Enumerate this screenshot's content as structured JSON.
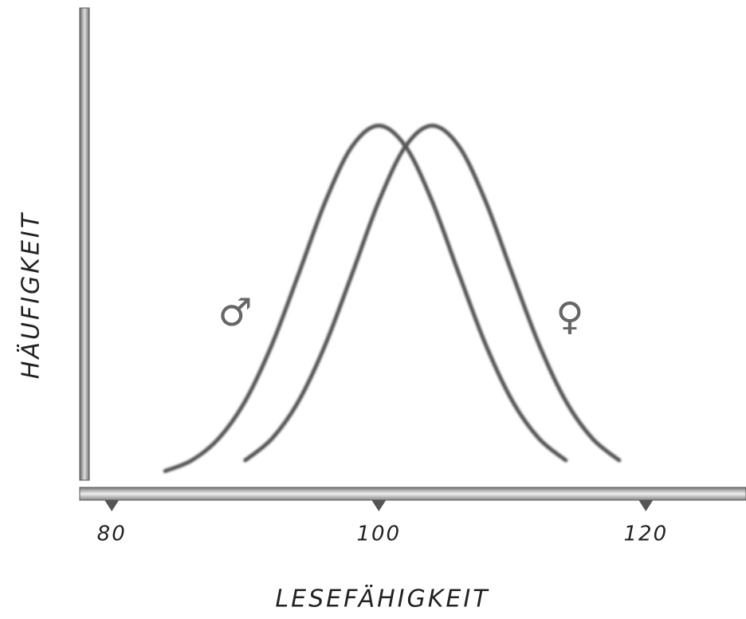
{
  "chart_data": {
    "type": "line",
    "x_label": "LESEFÄHIGKEIT",
    "y_label": "HÄUFIGKEIT",
    "xlim": [
      77.6,
      127.5
    ],
    "xticks": [
      80,
      100,
      120
    ],
    "ylim": [
      0,
      1
    ],
    "series": [
      {
        "name": "♂",
        "color": "#555555",
        "x": [
          84,
          86,
          88,
          90,
          92,
          94,
          96,
          98,
          100,
          102,
          104,
          106,
          108,
          110,
          112,
          114
        ],
        "values": [
          0.016,
          0.039,
          0.085,
          0.165,
          0.285,
          0.435,
          0.589,
          0.706,
          0.75,
          0.706,
          0.589,
          0.435,
          0.285,
          0.165,
          0.085,
          0.039
        ]
      },
      {
        "name": "♀",
        "color": "#555555",
        "x": [
          90,
          92,
          94,
          96,
          98,
          100,
          102,
          104,
          106,
          108,
          110,
          112,
          114,
          116,
          118
        ],
        "values": [
          0.039,
          0.085,
          0.165,
          0.285,
          0.435,
          0.589,
          0.706,
          0.75,
          0.706,
          0.589,
          0.435,
          0.285,
          0.165,
          0.085,
          0.039
        ]
      }
    ]
  }
}
